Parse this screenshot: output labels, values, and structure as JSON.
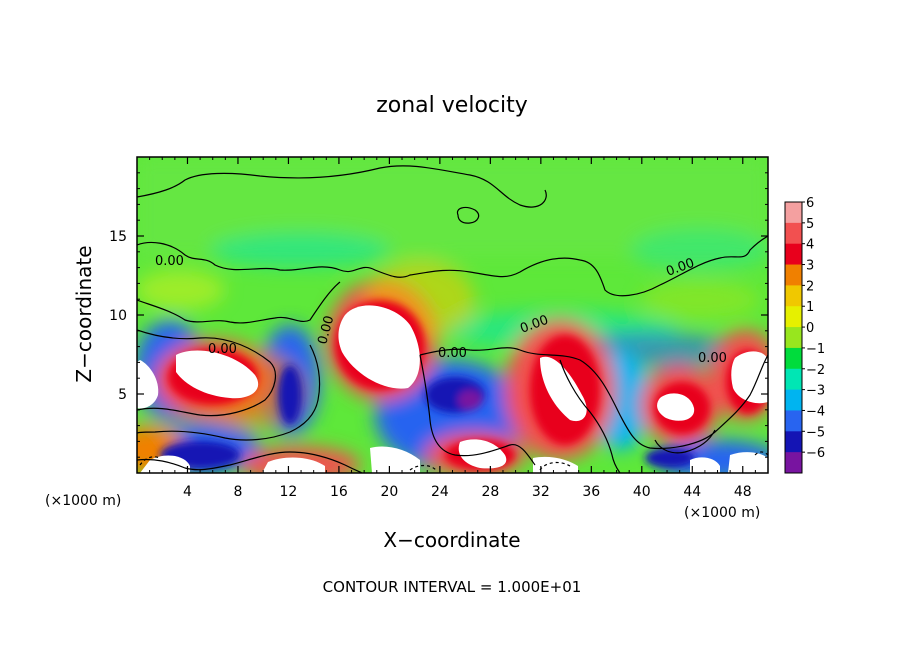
{
  "chart_data": {
    "type": "heatmap",
    "title": "zonal velocity",
    "xlabel": "X−coordinate",
    "ylabel": "Z−coordinate",
    "x_unit_left": "(×1000 m)",
    "x_unit_right": "(×1000 m)",
    "xlim": [
      0,
      50
    ],
    "ylim": [
      0,
      20
    ],
    "x_ticks": [
      4,
      8,
      12,
      16,
      20,
      24,
      28,
      32,
      36,
      40,
      44,
      48
    ],
    "x_tick_labels": [
      "4",
      "8",
      "12",
      "16",
      "20",
      "24",
      "28",
      "32",
      "36",
      "40",
      "44",
      "48"
    ],
    "y_ticks": [
      5,
      10,
      15
    ],
    "y_tick_labels": [
      "5",
      "10",
      "15"
    ],
    "contour_level": 0,
    "contour_labels": [
      "0.00",
      "0.00",
      "0.00",
      "0.00",
      "0.00",
      "0.00",
      "0.00"
    ],
    "colorbar": {
      "values": [
        6,
        5,
        4,
        3,
        2,
        1,
        0,
        -1,
        -2,
        -3,
        -4,
        -5,
        -6
      ],
      "labels": [
        "6",
        "5",
        "4",
        "3",
        "2",
        "1",
        "0",
        "−1",
        "−2",
        "−3",
        "−4",
        "−5",
        "−6"
      ],
      "colors": [
        "#f4a0a0",
        "#f25050",
        "#e8001c",
        "#f08000",
        "#f0c800",
        "#e6f000",
        "#98e61e",
        "#00dc3c",
        "#00e6b4",
        "#00b4f0",
        "#2864f0",
        "#1414b4",
        "#7814a0"
      ]
    },
    "footer": "CONTOUR INTERVAL = 1.000E+01"
  }
}
